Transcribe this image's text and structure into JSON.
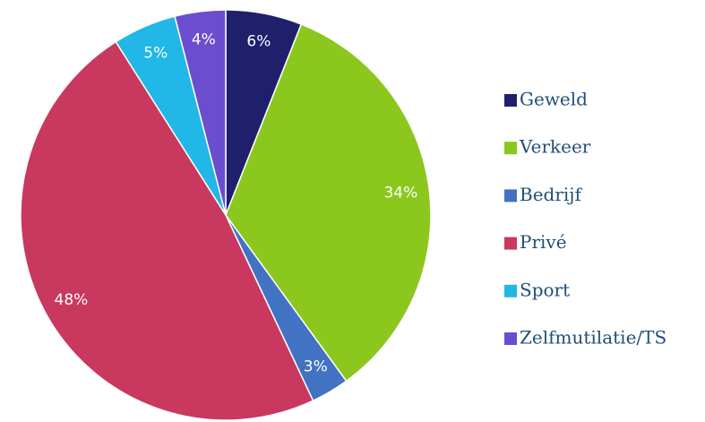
{
  "chart_data": {
    "type": "pie",
    "categories": [
      "Geweld",
      "Verkeer",
      "Bedrijf",
      "Privé",
      "Sport",
      "Zelfmutilatie/TS"
    ],
    "values": [
      6,
      34,
      3,
      48,
      5,
      4
    ],
    "value_labels": [
      "6%",
      "34%",
      "3%",
      "48%",
      "5%",
      "4%"
    ],
    "colors": [
      "#1f1f6b",
      "#8cc71e",
      "#4272c2",
      "#c8385f",
      "#21b7e6",
      "#6a4ecf"
    ],
    "legend": "right"
  }
}
